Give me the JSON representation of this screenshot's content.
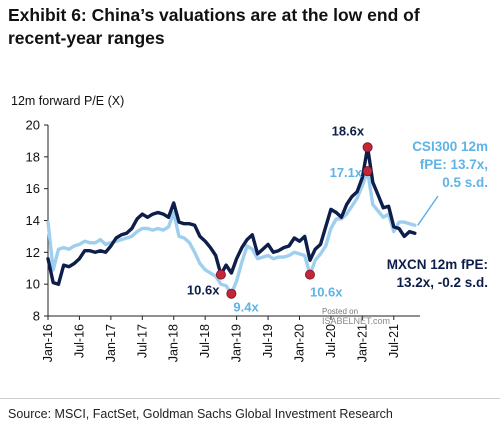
{
  "title": "Exhibit 6: China’s valuations are at the low end of recent-year ranges",
  "source": "Source: MSCI, FactSet, Goldman Sachs Global Investment Research",
  "watermark": "Posted on ISABELNET.com",
  "colors": {
    "mxcn": "#0d1e4a",
    "csi300": "#9fcfee",
    "marker": "#c0283a"
  },
  "chart_data": {
    "type": "line",
    "ylabel": "12m forward P/E (X)",
    "ylim": [
      8,
      20
    ],
    "yticks": [
      8,
      10,
      12,
      14,
      16,
      18,
      20
    ],
    "xlim": [
      "2016-01",
      "2021-12"
    ],
    "xticks": [
      "Jan-16",
      "Jul-16",
      "Jan-17",
      "Jul-17",
      "Jan-18",
      "Jul-18",
      "Jan-19",
      "Jul-19",
      "Jan-20",
      "Jul-20",
      "Jan-21",
      "Jul-21"
    ],
    "grid": false,
    "series": [
      {
        "name": "MXCN 12m fPE",
        "label": "MXCN 12m fPE:",
        "label2": "13.2x, -0.2 s.d.",
        "color": "#0d1e4a",
        "points": [
          [
            "2016-01",
            11.6
          ],
          [
            "2016-02",
            10.1
          ],
          [
            "2016-03",
            10.0
          ],
          [
            "2016-04",
            11.2
          ],
          [
            "2016-05",
            11.1
          ],
          [
            "2016-06",
            11.3
          ],
          [
            "2016-07",
            11.6
          ],
          [
            "2016-08",
            12.1
          ],
          [
            "2016-09",
            12.1
          ],
          [
            "2016-10",
            12.0
          ],
          [
            "2016-11",
            12.1
          ],
          [
            "2016-12",
            12.0
          ],
          [
            "2017-01",
            12.4
          ],
          [
            "2017-02",
            12.9
          ],
          [
            "2017-03",
            13.1
          ],
          [
            "2017-04",
            13.2
          ],
          [
            "2017-05",
            13.5
          ],
          [
            "2017-06",
            14.1
          ],
          [
            "2017-07",
            14.4
          ],
          [
            "2017-08",
            14.2
          ],
          [
            "2017-09",
            14.4
          ],
          [
            "2017-10",
            14.5
          ],
          [
            "2017-11",
            14.4
          ],
          [
            "2017-12",
            14.2
          ],
          [
            "2018-01",
            15.1
          ],
          [
            "2018-02",
            13.9
          ],
          [
            "2018-03",
            13.8
          ],
          [
            "2018-04",
            13.8
          ],
          [
            "2018-05",
            13.7
          ],
          [
            "2018-06",
            13.0
          ],
          [
            "2018-07",
            12.7
          ],
          [
            "2018-08",
            12.3
          ],
          [
            "2018-09",
            11.8
          ],
          [
            "2018-10",
            10.6
          ],
          [
            "2018-11",
            11.2
          ],
          [
            "2018-12",
            10.7
          ],
          [
            "2019-01",
            11.6
          ],
          [
            "2019-02",
            12.3
          ],
          [
            "2019-03",
            12.8
          ],
          [
            "2019-04",
            13.1
          ],
          [
            "2019-05",
            11.9
          ],
          [
            "2019-06",
            12.2
          ],
          [
            "2019-07",
            12.5
          ],
          [
            "2019-08",
            12.0
          ],
          [
            "2019-09",
            12.1
          ],
          [
            "2019-10",
            12.3
          ],
          [
            "2019-11",
            12.4
          ],
          [
            "2019-12",
            12.9
          ],
          [
            "2020-01",
            12.7
          ],
          [
            "2020-02",
            13.0
          ],
          [
            "2020-03",
            11.5
          ],
          [
            "2020-04",
            12.2
          ],
          [
            "2020-05",
            12.5
          ],
          [
            "2020-06",
            13.6
          ],
          [
            "2020-07",
            14.7
          ],
          [
            "2020-08",
            14.5
          ],
          [
            "2020-09",
            14.2
          ],
          [
            "2020-10",
            15.0
          ],
          [
            "2020-11",
            15.5
          ],
          [
            "2020-12",
            15.8
          ],
          [
            "2021-01",
            16.7
          ],
          [
            "2021-02",
            18.6
          ],
          [
            "2021-03",
            16.4
          ],
          [
            "2021-04",
            15.6
          ],
          [
            "2021-05",
            14.8
          ],
          [
            "2021-06",
            14.9
          ],
          [
            "2021-07",
            13.6
          ],
          [
            "2021-08",
            13.5
          ],
          [
            "2021-09",
            13.0
          ],
          [
            "2021-10",
            13.3
          ],
          [
            "2021-11",
            13.2
          ]
        ]
      },
      {
        "name": "CSI300 12m fPE",
        "label": "CSI300 12m",
        "label2": "fPE: 13.7x,",
        "label3": "0.5 s.d.",
        "color": "#9fcfee",
        "points": [
          [
            "2016-01",
            13.9
          ],
          [
            "2016-02",
            10.9
          ],
          [
            "2016-03",
            12.2
          ],
          [
            "2016-04",
            12.3
          ],
          [
            "2016-05",
            12.2
          ],
          [
            "2016-06",
            12.4
          ],
          [
            "2016-07",
            12.5
          ],
          [
            "2016-08",
            12.7
          ],
          [
            "2016-09",
            12.6
          ],
          [
            "2016-10",
            12.6
          ],
          [
            "2016-11",
            12.8
          ],
          [
            "2016-12",
            12.5
          ],
          [
            "2017-01",
            12.6
          ],
          [
            "2017-02",
            12.7
          ],
          [
            "2017-03",
            12.8
          ],
          [
            "2017-04",
            12.9
          ],
          [
            "2017-05",
            13.0
          ],
          [
            "2017-06",
            13.3
          ],
          [
            "2017-07",
            13.5
          ],
          [
            "2017-08",
            13.5
          ],
          [
            "2017-09",
            13.4
          ],
          [
            "2017-10",
            13.5
          ],
          [
            "2017-11",
            13.4
          ],
          [
            "2017-12",
            13.6
          ],
          [
            "2018-01",
            14.5
          ],
          [
            "2018-02",
            13.0
          ],
          [
            "2018-03",
            12.9
          ],
          [
            "2018-04",
            12.6
          ],
          [
            "2018-05",
            12.0
          ],
          [
            "2018-06",
            11.3
          ],
          [
            "2018-07",
            10.9
          ],
          [
            "2018-08",
            10.7
          ],
          [
            "2018-09",
            10.5
          ],
          [
            "2018-10",
            10.0
          ],
          [
            "2018-11",
            9.9
          ],
          [
            "2018-12",
            9.4
          ],
          [
            "2019-01",
            10.2
          ],
          [
            "2019-02",
            11.4
          ],
          [
            "2019-03",
            12.4
          ],
          [
            "2019-04",
            12.2
          ],
          [
            "2019-05",
            11.6
          ],
          [
            "2019-06",
            11.7
          ],
          [
            "2019-07",
            11.8
          ],
          [
            "2019-08",
            11.6
          ],
          [
            "2019-09",
            11.7
          ],
          [
            "2019-10",
            11.7
          ],
          [
            "2019-11",
            11.8
          ],
          [
            "2019-12",
            12.0
          ],
          [
            "2020-01",
            11.9
          ],
          [
            "2020-02",
            11.8
          ],
          [
            "2020-03",
            10.6
          ],
          [
            "2020-04",
            11.5
          ],
          [
            "2020-05",
            11.9
          ],
          [
            "2020-06",
            12.4
          ],
          [
            "2020-07",
            13.5
          ],
          [
            "2020-08",
            14.1
          ],
          [
            "2020-09",
            14.1
          ],
          [
            "2020-10",
            14.4
          ],
          [
            "2020-11",
            14.9
          ],
          [
            "2020-12",
            15.4
          ],
          [
            "2021-01",
            16.2
          ],
          [
            "2021-02",
            17.1
          ],
          [
            "2021-03",
            15.0
          ],
          [
            "2021-04",
            14.6
          ],
          [
            "2021-05",
            14.2
          ],
          [
            "2021-06",
            14.4
          ],
          [
            "2021-07",
            13.3
          ],
          [
            "2021-08",
            13.9
          ],
          [
            "2021-09",
            13.9
          ],
          [
            "2021-10",
            13.8
          ],
          [
            "2021-11",
            13.7
          ]
        ]
      }
    ],
    "annotations": [
      {
        "text": "18.6x",
        "x": "2021-02",
        "y": 18.6,
        "series": "MXCN 12m fPE"
      },
      {
        "text": "17.1x",
        "x": "2021-02",
        "y": 17.1,
        "series": "CSI300 12m fPE"
      },
      {
        "text": "10.6x",
        "x": "2018-10",
        "y": 10.6,
        "series": "MXCN 12m fPE"
      },
      {
        "text": "9.4x",
        "x": "2018-12",
        "y": 9.4,
        "series": "CSI300 12m fPE"
      },
      {
        "text": "10.6x",
        "x": "2020-03",
        "y": 10.6,
        "series": "CSI300 12m fPE"
      }
    ]
  }
}
